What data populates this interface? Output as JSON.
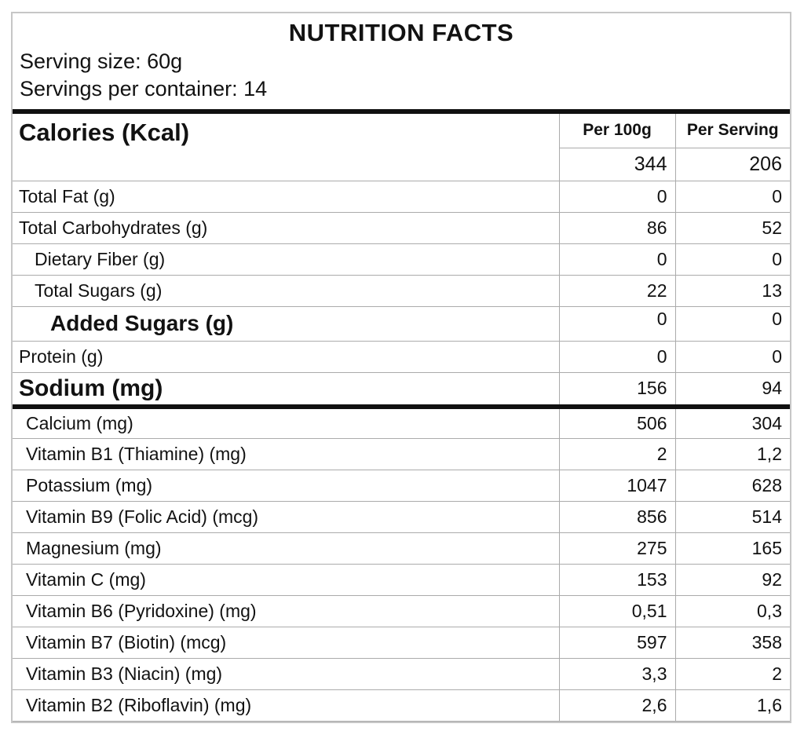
{
  "header": {
    "title": "NUTRITION FACTS",
    "serving_size": "Serving size: 60g",
    "servings_per_container": "Servings per container: 14"
  },
  "table": {
    "columns": [
      "Per 100g",
      "Per Serving"
    ],
    "calories": {
      "label": "Calories (Kcal)",
      "per_100g": "344",
      "per_serving": "206"
    },
    "rows": [
      {
        "label": "Total Fat (g)",
        "per_100g": "0",
        "per_serving": "0",
        "style": "plain"
      },
      {
        "label": "Total Carbohydrates (g)",
        "per_100g": "86",
        "per_serving": "52",
        "style": "plain"
      },
      {
        "label": "Dietary Fiber (g)",
        "per_100g": "0",
        "per_serving": "0",
        "style": "sub"
      },
      {
        "label": "Total Sugars (g)",
        "per_100g": "22",
        "per_serving": "13",
        "style": "sub"
      },
      {
        "label": "Added Sugars (g)",
        "per_100g": "0",
        "per_serving": "0",
        "style": "added"
      },
      {
        "label": "Protein (g)",
        "per_100g": "0",
        "per_serving": "0",
        "style": "plain"
      },
      {
        "label": "Sodium (mg)",
        "per_100g": "156",
        "per_serving": "94",
        "style": "major"
      },
      {
        "label": "Calcium (mg)",
        "per_100g": "506",
        "per_serving": "304",
        "style": "micro"
      },
      {
        "label": "Vitamin B1 (Thiamine) (mg)",
        "per_100g": "2",
        "per_serving": "1,2",
        "style": "micro"
      },
      {
        "label": "Potassium (mg)",
        "per_100g": "1047",
        "per_serving": "628",
        "style": "micro"
      },
      {
        "label": "Vitamin B9 (Folic Acid) (mcg)",
        "per_100g": "856",
        "per_serving": "514",
        "style": "micro"
      },
      {
        "label": "Magnesium (mg)",
        "per_100g": "275",
        "per_serving": "165",
        "style": "micro"
      },
      {
        "label": "Vitamin C (mg)",
        "per_100g": "153",
        "per_serving": "92",
        "style": "micro"
      },
      {
        "label": "Vitamin B6 (Pyridoxine) (mg)",
        "per_100g": "0,51",
        "per_serving": "0,3",
        "style": "micro"
      },
      {
        "label": "Vitamin B7 (Biotin) (mcg)",
        "per_100g": "597",
        "per_serving": "358",
        "style": "micro"
      },
      {
        "label": "Vitamin B3 (Niacin) (mg)",
        "per_100g": "3,3",
        "per_serving": "2",
        "style": "micro"
      },
      {
        "label": "Vitamin B2 (Riboflavin) (mg)",
        "per_100g": "2,6",
        "per_serving": "1,6",
        "style": "micro"
      }
    ]
  },
  "colors": {
    "text": "#121212",
    "thick_rule": "#101010",
    "thin_rule": "#ababab",
    "background": "#ffffff"
  }
}
